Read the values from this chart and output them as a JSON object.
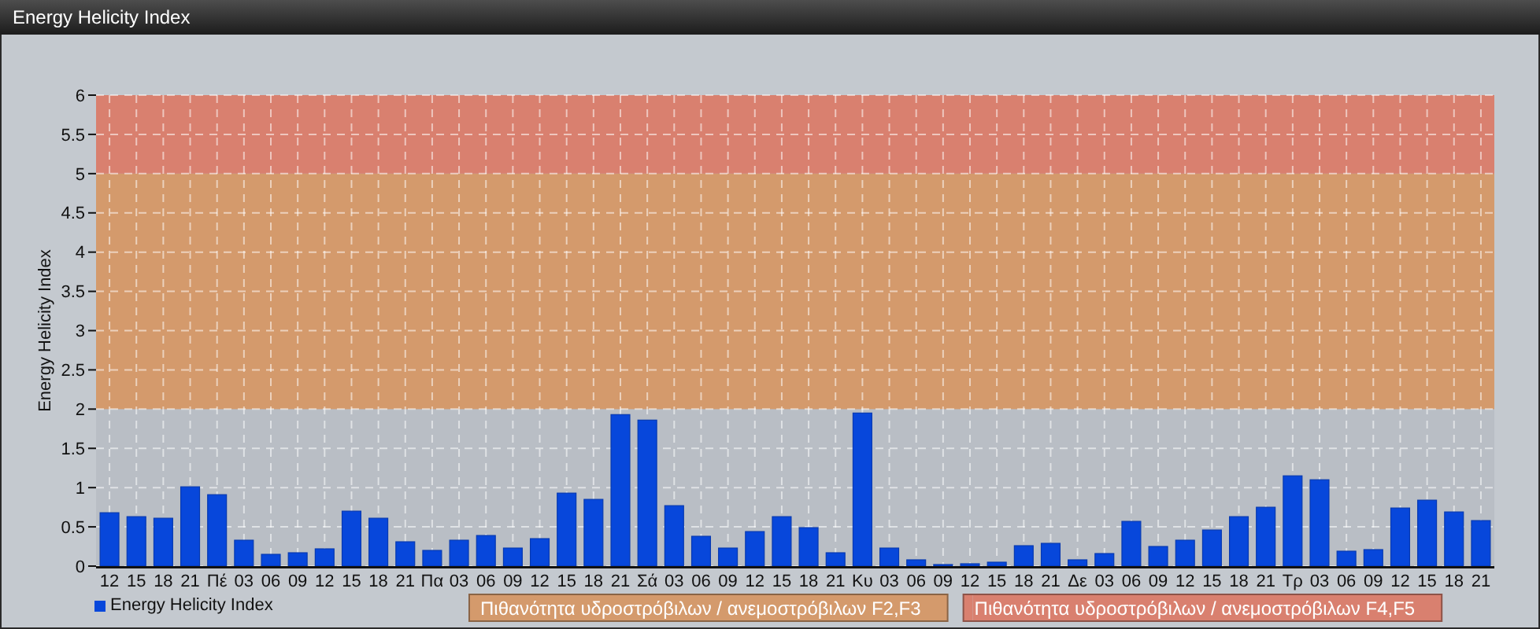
{
  "chart_data": {
    "type": "bar",
    "title": "Energy Helicity Index",
    "ylabel": "Energy Helicity Index",
    "categories": [
      "12",
      "15",
      "18",
      "21",
      "Πέ",
      "03",
      "06",
      "09",
      "12",
      "15",
      "18",
      "21",
      "Πα",
      "03",
      "06",
      "09",
      "12",
      "15",
      "18",
      "21",
      "Σά",
      "03",
      "06",
      "09",
      "12",
      "15",
      "18",
      "21",
      "Κυ",
      "03",
      "06",
      "09",
      "12",
      "15",
      "18",
      "21",
      "Δε",
      "03",
      "06",
      "09",
      "12",
      "15",
      "18",
      "21",
      "Τρ",
      "03",
      "06",
      "09",
      "12",
      "15",
      "18",
      "21"
    ],
    "series": [
      {
        "name": "Energy Helicity Index",
        "color": "#0747db",
        "values": [
          0.68,
          0.63,
          0.61,
          1.01,
          0.91,
          0.33,
          0.15,
          0.17,
          0.22,
          0.7,
          0.61,
          0.31,
          0.2,
          0.33,
          0.39,
          0.23,
          0.35,
          0.93,
          0.85,
          1.93,
          1.86,
          0.77,
          0.38,
          0.23,
          0.44,
          0.63,
          0.49,
          0.17,
          1.95,
          0.23,
          0.08,
          0.02,
          0.03,
          0.05,
          0.26,
          0.29,
          0.08,
          0.16,
          0.57,
          0.25,
          0.33,
          0.46,
          0.63,
          0.75,
          1.15,
          1.1,
          0.19,
          0.21,
          0.74,
          0.84,
          0.69,
          0.58
        ]
      }
    ],
    "ylim": [
      0,
      6
    ],
    "yticks": [
      0,
      0.5,
      1,
      1.5,
      2,
      2.5,
      3,
      3.5,
      4,
      4.5,
      5,
      5.5,
      6
    ],
    "grid": true,
    "legend": "bottom left",
    "bands": [
      {
        "axis": "y",
        "from": 2,
        "to": 5,
        "label": "Πιθανότητα υδροστρόβιλων / ανεμοστρόβιλων F2,F3",
        "color": "#d49a6c"
      },
      {
        "axis": "y",
        "from": 5,
        "to": 6,
        "label": "Πιθανότητα υδροστρόβιλων / ανεμοστρόβιλων F4,F5",
        "color": "#d9806f"
      }
    ]
  }
}
